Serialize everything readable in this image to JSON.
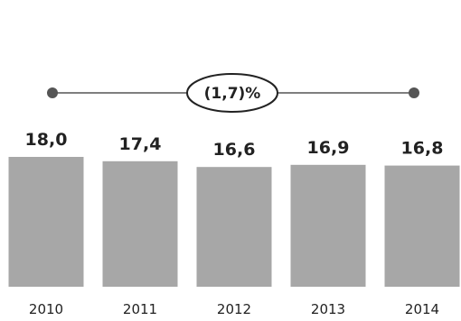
{
  "chart_data": {
    "type": "bar",
    "categories": [
      "2010",
      "2011",
      "2012",
      "2013",
      "2014"
    ],
    "values": [
      18.0,
      17.4,
      16.6,
      16.9,
      16.8
    ],
    "value_labels": [
      "18,0",
      "17,4",
      "16,6",
      "16,9",
      "16,8"
    ],
    "ylim": [
      0,
      18
    ],
    "grid": false,
    "legend": "none",
    "annotation": {
      "text": "(1,7)%",
      "from_category": "2010",
      "to_category": "2014"
    },
    "colors": {
      "bar": "#a7a7a7",
      "text": "#222222",
      "line": "#555555",
      "dot": "#555555"
    }
  }
}
